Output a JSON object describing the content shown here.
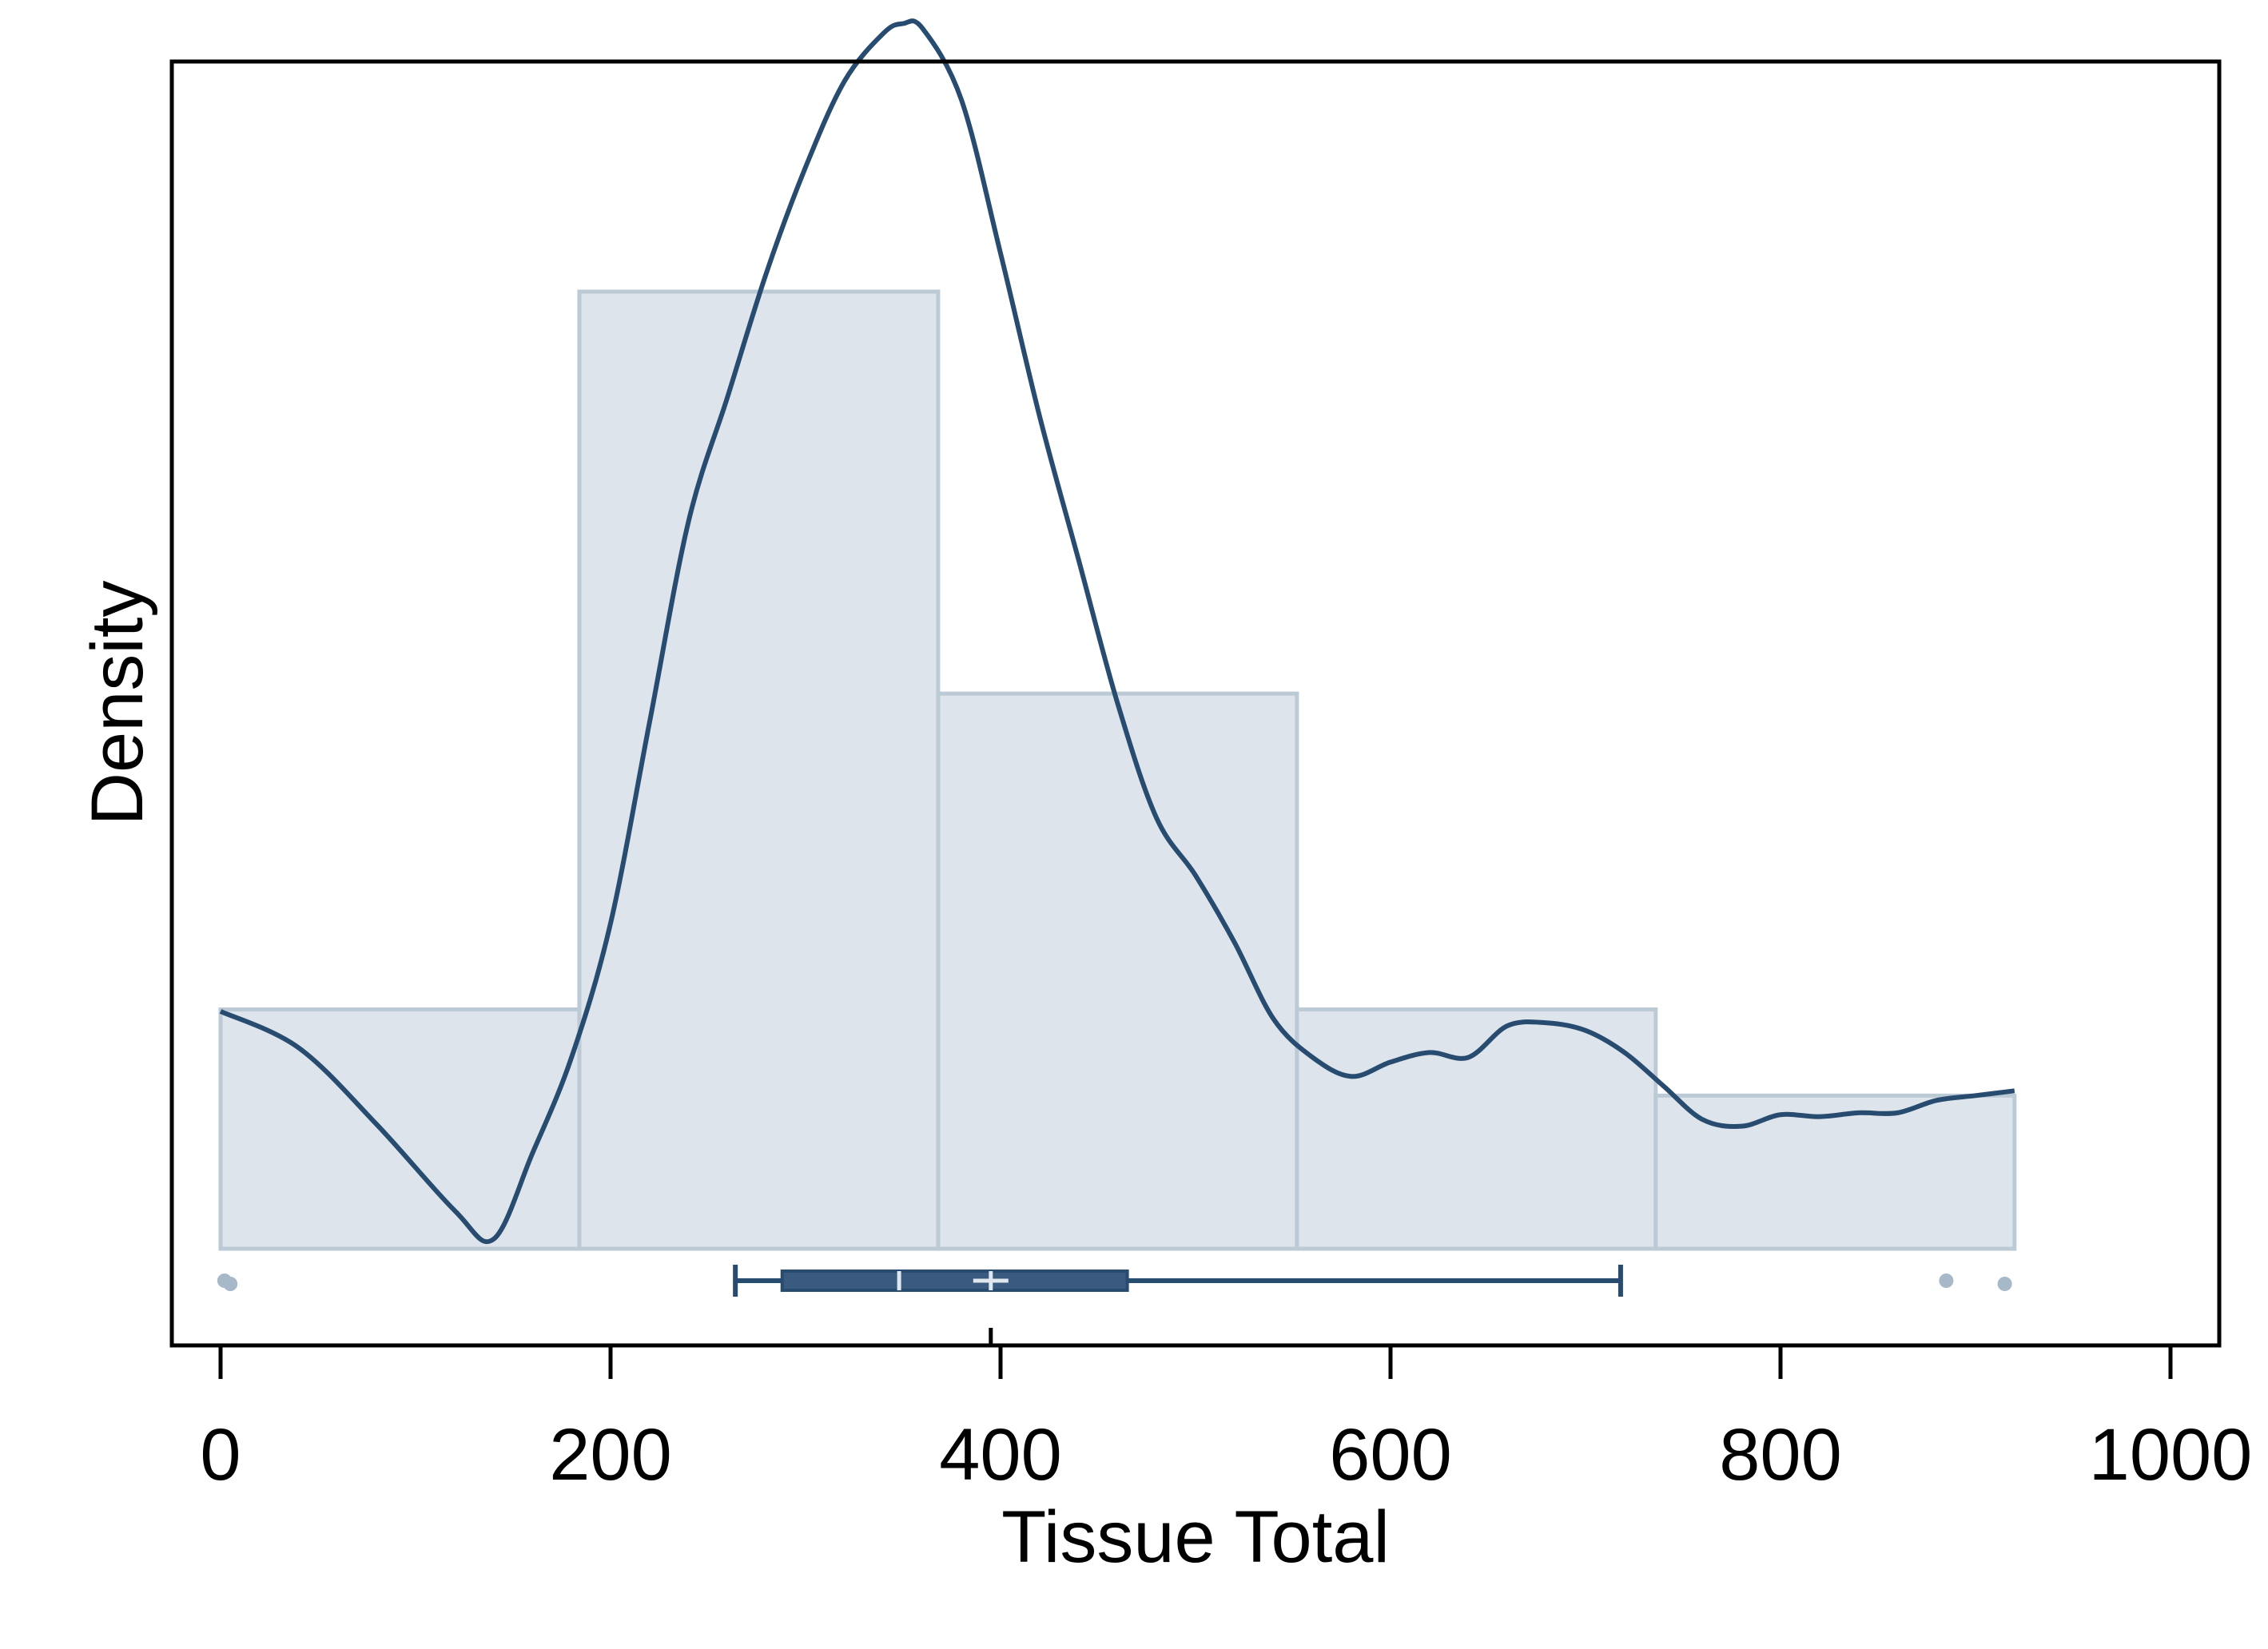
{
  "chart_data": {
    "type": "histogram",
    "xlabel": "Tissue Total",
    "ylabel": "Density",
    "xlim": [
      -25,
      1025
    ],
    "x_ticks": [
      0,
      200,
      400,
      600,
      800,
      1000
    ],
    "x_tick_labels": [
      "0",
      "200",
      "400",
      "600",
      "800",
      "1000"
    ],
    "y_ticks_shown": false,
    "grid": false,
    "legend": "none",
    "histogram": {
      "bins": [
        {
          "x0": 0,
          "x1": 184,
          "relative_density": 0.25
        },
        {
          "x0": 184,
          "x1": 368,
          "relative_density": 1.0
        },
        {
          "x0": 368,
          "x1": 552,
          "relative_density": 0.58
        },
        {
          "x0": 552,
          "x1": 736,
          "relative_density": 0.25
        },
        {
          "x0": 736,
          "x1": 920,
          "relative_density": 0.16
        }
      ]
    },
    "density_curve": {
      "x": [
        0,
        40,
        80,
        120,
        140,
        160,
        180,
        200,
        220,
        240,
        260,
        280,
        300,
        320,
        340,
        350,
        360,
        380,
        400,
        420,
        440,
        460,
        480,
        500,
        520,
        540,
        560,
        580,
        600,
        620,
        640,
        660,
        680,
        700,
        720,
        740,
        760,
        780,
        800,
        820,
        840,
        860,
        880,
        900,
        920
      ],
      "y": [
        0.248,
        0.21,
        0.13,
        0.04,
        0.01,
        0.1,
        0.2,
        0.34,
        0.55,
        0.76,
        0.89,
        1.02,
        1.13,
        1.22,
        1.27,
        1.28,
        1.275,
        1.2,
        1.04,
        0.87,
        0.72,
        0.57,
        0.45,
        0.39,
        0.32,
        0.24,
        0.2,
        0.18,
        0.195,
        0.205,
        0.2,
        0.233,
        0.236,
        0.228,
        0.205,
        0.17,
        0.135,
        0.128,
        0.14,
        0.138,
        0.142,
        0.142,
        0.155,
        0.16,
        0.165
      ]
    },
    "boxplot": {
      "whisker_low": 264,
      "q1": 288,
      "median": 348,
      "mean": 395,
      "q3": 465,
      "whisker_high": 718,
      "outliers": [
        2,
        5,
        885,
        915
      ]
    },
    "colors": {
      "line": "#284b70",
      "bar_fill": "#dde4eb",
      "bar_stroke": "#bccad6",
      "box": "#3a5a80",
      "outlier": "#a7b8c9",
      "plot_bg": "#ffffff",
      "frame": "#000000"
    }
  }
}
